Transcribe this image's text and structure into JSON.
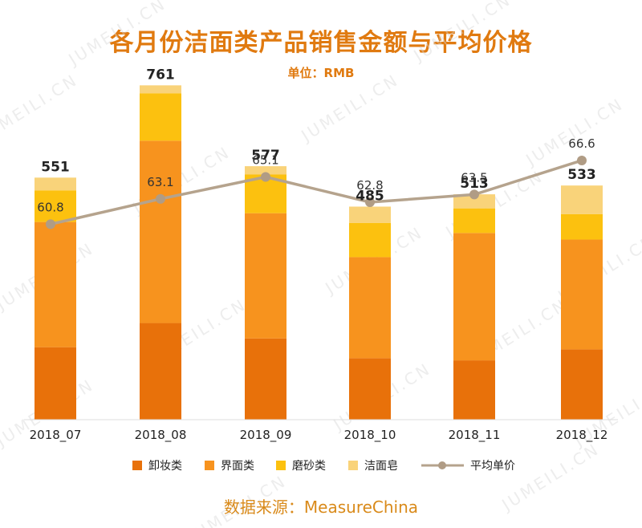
{
  "chart_data": {
    "type": "bar",
    "title": "各月份洁面类产品销售金额与平均价格",
    "subtitle": "单位：RMB",
    "source": "数据来源：MeasureChina",
    "watermark": "JUMEILI.CN",
    "categories": [
      "2018_07",
      "2018_08",
      "2018_09",
      "2018_10",
      "2018_11",
      "2018_12"
    ],
    "series": [
      {
        "name": "卸妆类",
        "color": "#e8710a",
        "values": [
          165,
          220,
          185,
          140,
          135,
          160
        ]
      },
      {
        "name": "界面类",
        "color": "#f7931e",
        "values": [
          285,
          415,
          285,
          230,
          290,
          250
        ]
      },
      {
        "name": "磨砂类",
        "color": "#fcc10f",
        "values": [
          72,
          108,
          88,
          78,
          56,
          58
        ]
      },
      {
        "name": "洁面皂",
        "color": "#f9d37a",
        "values": [
          29,
          18,
          19,
          37,
          32,
          65
        ]
      }
    ],
    "totals": [
      "551",
      "761",
      "577",
      "485",
      "513",
      "533"
    ],
    "line": {
      "name": "平均单价",
      "color": "#b5a38d",
      "values": [
        60.8,
        63.1,
        65.1,
        62.8,
        63.5,
        66.6
      ],
      "labels": [
        "60.8",
        "63.1",
        "65.1",
        "62.8",
        "63.5",
        "66.6"
      ]
    },
    "ylim": [
      0,
      800
    ],
    "line_ylim": [
      43,
      75
    ]
  }
}
